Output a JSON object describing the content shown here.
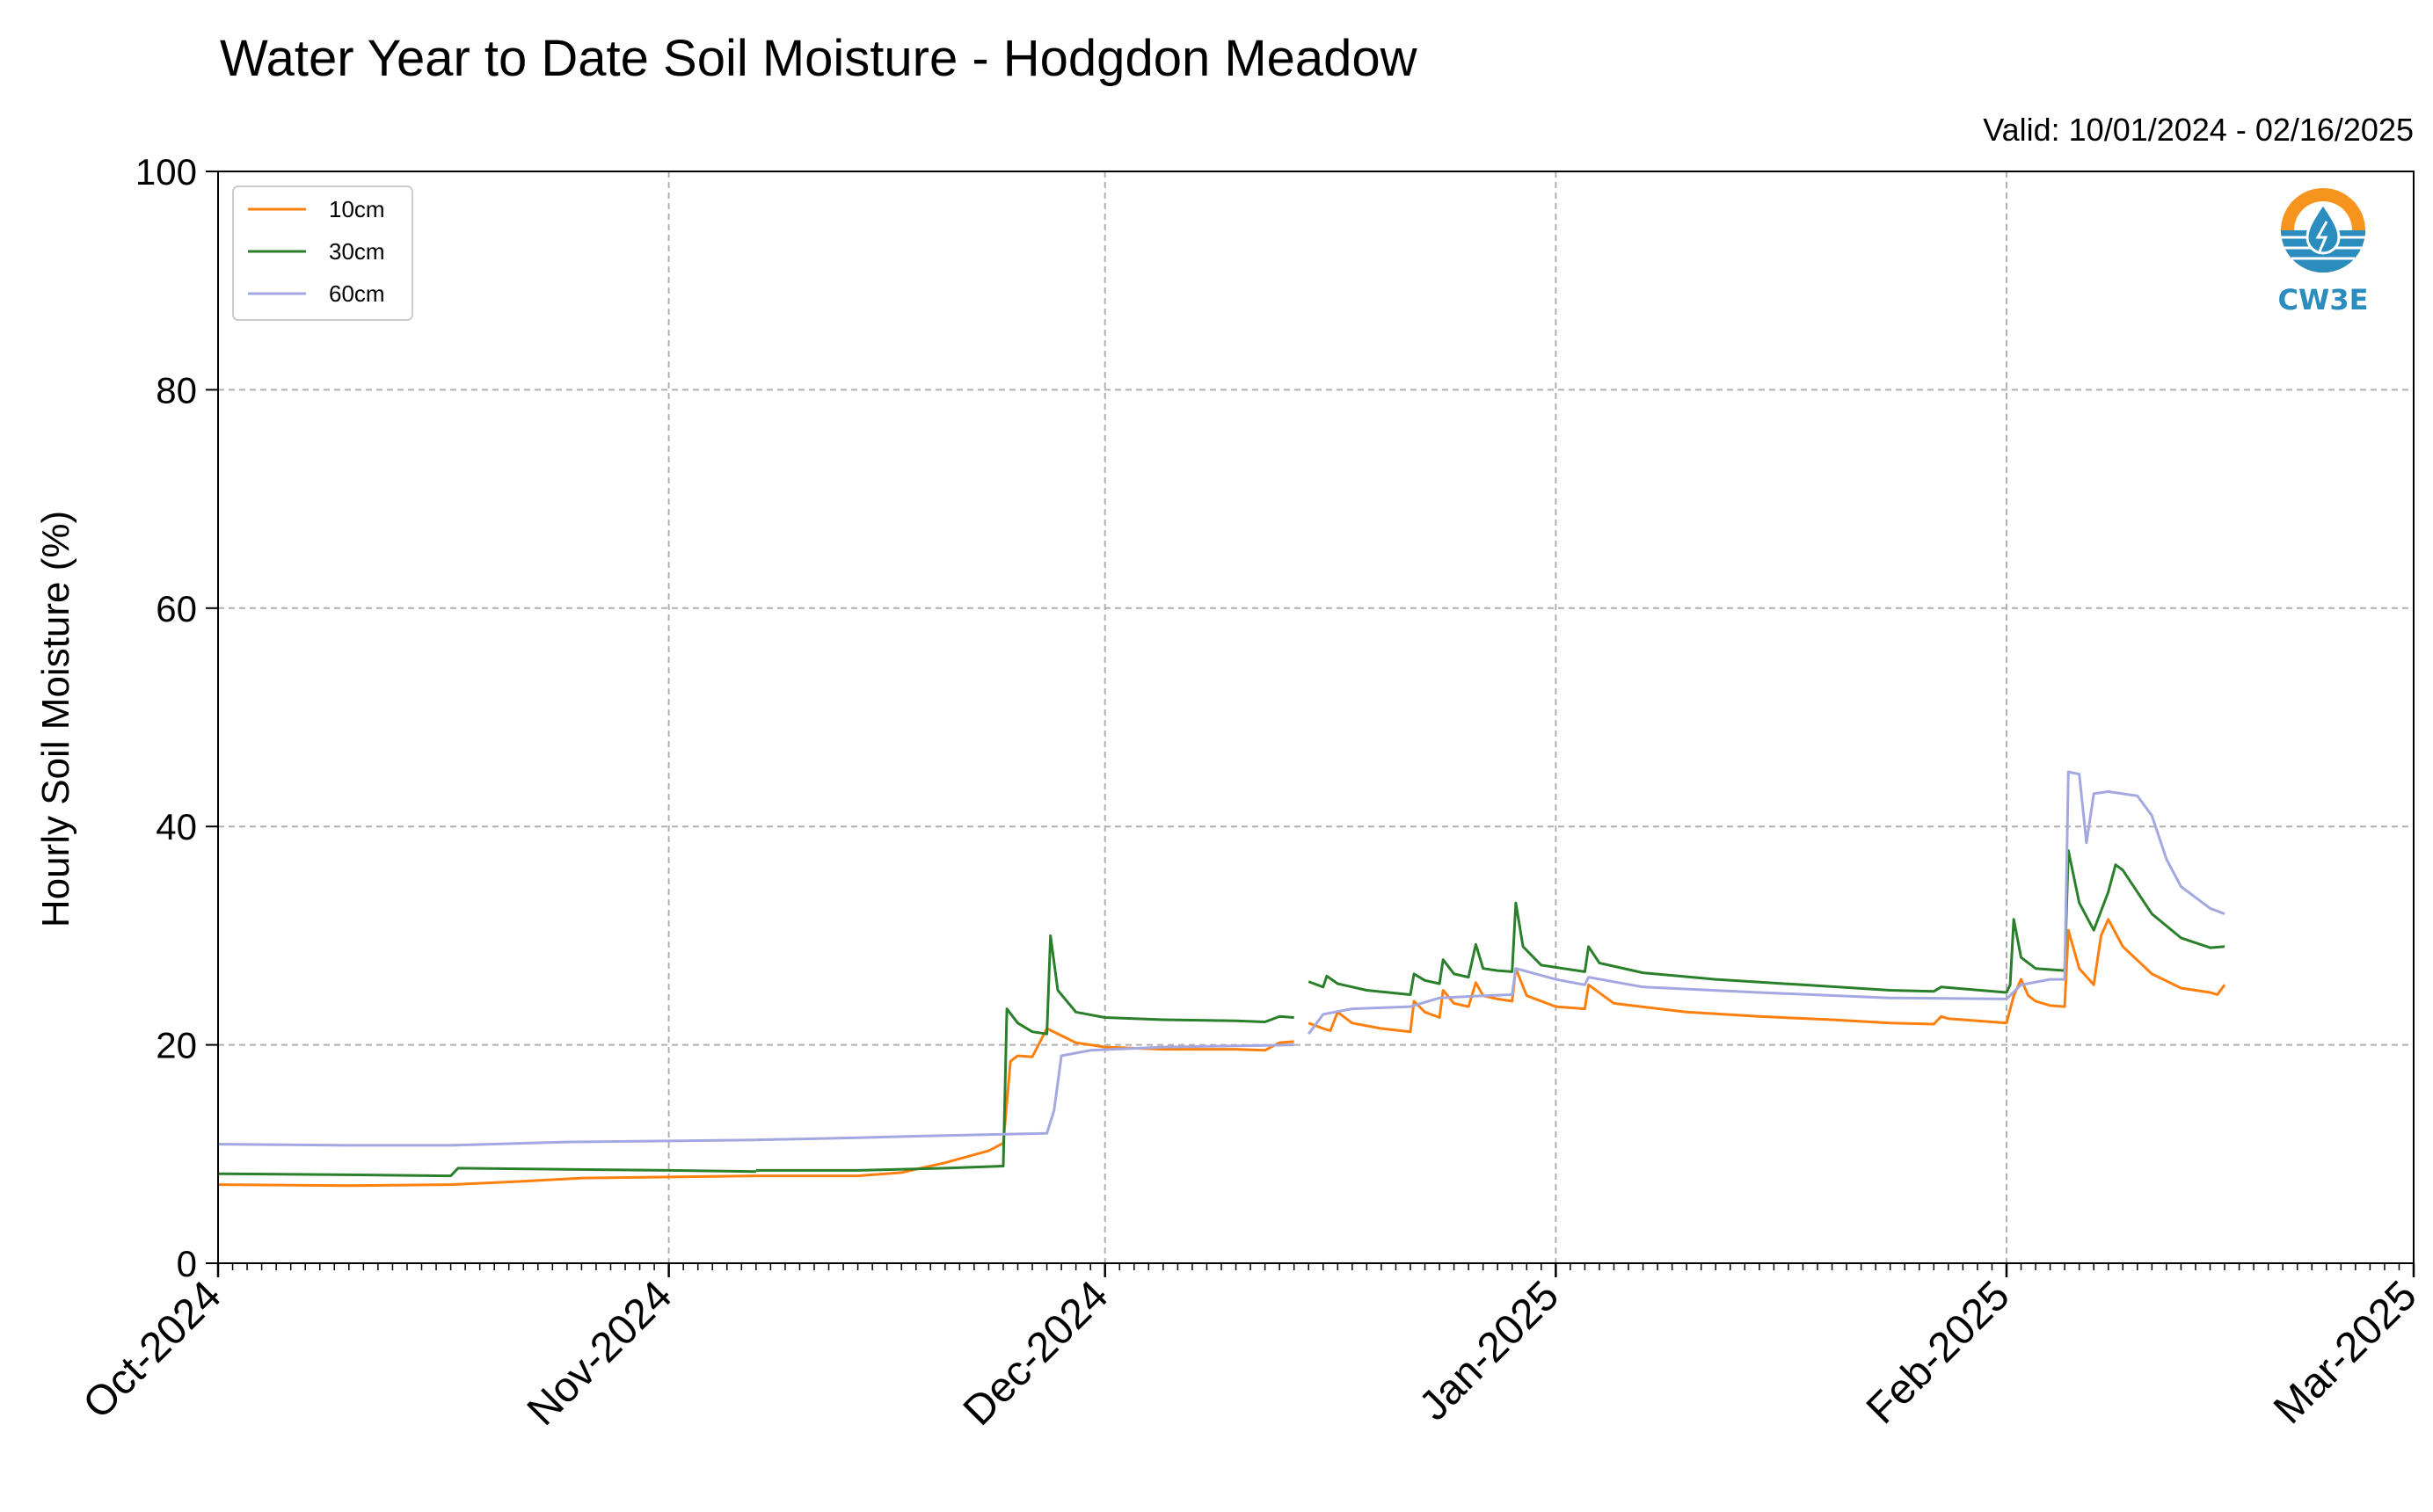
{
  "chart_data": {
    "type": "line",
    "title": "Water Year to Date Soil Moisture - Hodgdon Meadow",
    "subtitle": "Valid: 10/01/2024 - 02/16/2025",
    "ylabel": "Hourly Soil Moisture (%)",
    "xlabel": "",
    "ylim": [
      0,
      100
    ],
    "yticks": [
      0,
      20,
      40,
      60,
      80,
      100
    ],
    "xlim": [
      "2024-10-01",
      "2025-03-01"
    ],
    "xticks": [
      {
        "date": "2024-10-01",
        "label": "Oct-2024"
      },
      {
        "date": "2024-11-01",
        "label": "Nov-2024"
      },
      {
        "date": "2024-12-01",
        "label": "Dec-2024"
      },
      {
        "date": "2025-01-01",
        "label": "Jan-2025"
      },
      {
        "date": "2025-02-01",
        "label": "Feb-2025"
      },
      {
        "date": "2025-03-01",
        "label": "Mar-2025"
      }
    ],
    "grid": true,
    "legend_position": "top-left",
    "series": [
      {
        "name": "10cm",
        "color": "#ff7f0e",
        "segments": [
          [
            [
              "2024-10-01",
              7.2
            ],
            [
              "2024-10-10",
              7.1
            ],
            [
              "2024-10-17",
              7.2
            ],
            [
              "2024-10-22",
              7.5
            ],
            [
              "2024-10-26",
              7.8
            ],
            [
              "2024-11-01",
              7.9
            ],
            [
              "2024-11-07",
              8.0
            ]
          ],
          [
            [
              "2024-11-07",
              8.0
            ],
            [
              "2024-11-14",
              8.0
            ],
            [
              "2024-11-17",
              8.3
            ],
            [
              "2024-11-20",
              9.2
            ],
            [
              "2024-11-23",
              10.3
            ],
            [
              "2024-11-24",
              11.0
            ],
            [
              "2024-11-24 12:00",
              18.5
            ],
            [
              "2024-11-25",
              19.0
            ],
            [
              "2024-11-26",
              18.9
            ],
            [
              "2024-11-27",
              21.5
            ],
            [
              "2024-11-29",
              20.2
            ],
            [
              "2024-12-01",
              19.8
            ],
            [
              "2024-12-05",
              19.6
            ],
            [
              "2024-12-10",
              19.6
            ],
            [
              "2024-12-12",
              19.5
            ],
            [
              "2024-12-13",
              20.2
            ],
            [
              "2024-12-14",
              20.3
            ]
          ],
          [
            [
              "2024-12-15",
              22.0
            ],
            [
              "2024-12-16",
              21.5
            ],
            [
              "2024-12-16 12:00",
              21.3
            ],
            [
              "2024-12-17",
              23.0
            ],
            [
              "2024-12-18",
              22.0
            ],
            [
              "2024-12-20",
              21.5
            ],
            [
              "2024-12-22",
              21.2
            ],
            [
              "2024-12-22 06:00",
              24.0
            ],
            [
              "2024-12-23",
              23.0
            ],
            [
              "2024-12-24",
              22.5
            ],
            [
              "2024-12-24 06:00",
              25.0
            ],
            [
              "2024-12-25",
              23.8
            ],
            [
              "2024-12-26",
              23.5
            ],
            [
              "2024-12-26 12:00",
              25.7
            ],
            [
              "2024-12-27",
              24.5
            ],
            [
              "2024-12-28",
              24.2
            ],
            [
              "2024-12-29",
              24.0
            ],
            [
              "2024-12-29 06:00",
              27.0
            ],
            [
              "2024-12-30",
              24.5
            ],
            [
              "2025-01-01",
              23.5
            ],
            [
              "2025-01-03",
              23.3
            ],
            [
              "2025-01-03 06:00",
              25.5
            ],
            [
              "2025-01-05",
              23.8
            ],
            [
              "2025-01-10",
              23.0
            ],
            [
              "2025-01-15",
              22.6
            ],
            [
              "2025-01-20",
              22.3
            ],
            [
              "2025-01-24",
              22.0
            ],
            [
              "2025-01-27",
              21.9
            ],
            [
              "2025-01-27 12:00",
              22.6
            ],
            [
              "2025-01-28",
              22.4
            ],
            [
              "2025-02-01",
              22.0
            ],
            [
              "2025-02-01 12:00",
              24.5
            ],
            [
              "2025-02-02",
              26.0
            ],
            [
              "2025-02-02 12:00",
              24.5
            ],
            [
              "2025-02-03",
              24.0
            ],
            [
              "2025-02-04",
              23.6
            ],
            [
              "2025-02-05",
              23.5
            ],
            [
              "2025-02-05 06:00",
              30.5
            ],
            [
              "2025-02-06",
              27.0
            ],
            [
              "2025-02-07",
              25.5
            ],
            [
              "2025-02-07 12:00",
              30.0
            ],
            [
              "2025-02-08",
              31.5
            ],
            [
              "2025-02-09",
              29.0
            ],
            [
              "2025-02-11",
              26.5
            ],
            [
              "2025-02-13",
              25.2
            ],
            [
              "2025-02-15",
              24.8
            ],
            [
              "2025-02-15 12:00",
              24.6
            ],
            [
              "2025-02-16",
              25.5
            ]
          ]
        ]
      },
      {
        "name": "30cm",
        "color": "#2a7f2a",
        "segments": [
          [
            [
              "2024-10-01",
              8.2
            ],
            [
              "2024-10-10",
              8.1
            ],
            [
              "2024-10-17",
              8.0
            ],
            [
              "2024-10-17 12:00",
              8.7
            ],
            [
              "2024-10-25",
              8.6
            ],
            [
              "2024-11-01",
              8.5
            ],
            [
              "2024-11-07",
              8.4
            ]
          ],
          [
            [
              "2024-11-07",
              8.5
            ],
            [
              "2024-11-14",
              8.5
            ],
            [
              "2024-11-20",
              8.7
            ],
            [
              "2024-11-24",
              8.9
            ],
            [
              "2024-11-24 06:00",
              23.3
            ],
            [
              "2024-11-25",
              22.0
            ],
            [
              "2024-11-26",
              21.2
            ],
            [
              "2024-11-27",
              21.0
            ],
            [
              "2024-11-27 06:00",
              30.0
            ],
            [
              "2024-11-27 18:00",
              25.0
            ],
            [
              "2024-11-29",
              23.0
            ],
            [
              "2024-12-01",
              22.5
            ],
            [
              "2024-12-05",
              22.3
            ],
            [
              "2024-12-10",
              22.2
            ],
            [
              "2024-12-12",
              22.1
            ],
            [
              "2024-12-13",
              22.6
            ],
            [
              "2024-12-14",
              22.5
            ]
          ],
          [
            [
              "2024-12-15",
              25.8
            ],
            [
              "2024-12-16",
              25.3
            ],
            [
              "2024-12-16 06:00",
              26.3
            ],
            [
              "2024-12-17",
              25.6
            ],
            [
              "2024-12-19",
              25.0
            ],
            [
              "2024-12-22",
              24.6
            ],
            [
              "2024-12-22 06:00",
              26.5
            ],
            [
              "2024-12-23",
              25.9
            ],
            [
              "2024-12-24",
              25.6
            ],
            [
              "2024-12-24 06:00",
              27.8
            ],
            [
              "2024-12-25",
              26.5
            ],
            [
              "2024-12-26",
              26.2
            ],
            [
              "2024-12-26 12:00",
              29.2
            ],
            [
              "2024-12-27",
              27.0
            ],
            [
              "2024-12-28",
              26.8
            ],
            [
              "2024-12-29",
              26.7
            ],
            [
              "2024-12-29 06:00",
              33.0
            ],
            [
              "2024-12-29 18:00",
              29.0
            ],
            [
              "2024-12-31",
              27.3
            ],
            [
              "2025-01-03",
              26.7
            ],
            [
              "2025-01-03 06:00",
              29.0
            ],
            [
              "2025-01-04",
              27.5
            ],
            [
              "2025-01-07",
              26.6
            ],
            [
              "2025-01-12",
              26.0
            ],
            [
              "2025-01-18",
              25.5
            ],
            [
              "2025-01-24",
              25.0
            ],
            [
              "2025-01-27",
              24.9
            ],
            [
              "2025-01-27 12:00",
              25.3
            ],
            [
              "2025-02-01",
              24.8
            ],
            [
              "2025-02-01 06:00",
              25.5
            ],
            [
              "2025-02-01 12:00",
              31.5
            ],
            [
              "2025-02-02",
              28.0
            ],
            [
              "2025-02-03",
              27.0
            ],
            [
              "2025-02-05",
              26.8
            ],
            [
              "2025-02-05 06:00",
              37.8
            ],
            [
              "2025-02-06",
              33.0
            ],
            [
              "2025-02-07",
              30.5
            ],
            [
              "2025-02-08",
              34.0
            ],
            [
              "2025-02-08 12:00",
              36.5
            ],
            [
              "2025-02-09",
              36.0
            ],
            [
              "2025-02-11",
              32.0
            ],
            [
              "2025-02-13",
              29.8
            ],
            [
              "2025-02-15",
              28.9
            ],
            [
              "2025-02-16",
              29.0
            ]
          ]
        ]
      },
      {
        "name": "60cm",
        "color": "#a3a8e0",
        "segments": [
          [
            [
              "2024-10-01",
              10.9
            ],
            [
              "2024-10-10",
              10.8
            ],
            [
              "2024-10-17",
              10.8
            ],
            [
              "2024-10-25",
              11.1
            ],
            [
              "2024-11-01",
              11.2
            ],
            [
              "2024-11-07",
              11.3
            ]
          ],
          [
            [
              "2024-11-07",
              11.3
            ],
            [
              "2024-11-14",
              11.5
            ],
            [
              "2024-11-20",
              11.7
            ],
            [
              "2024-11-27",
              11.9
            ],
            [
              "2024-11-27 12:00",
              14.0
            ],
            [
              "2024-11-28",
              19.0
            ],
            [
              "2024-11-30",
              19.5
            ],
            [
              "2024-12-05",
              19.8
            ],
            [
              "2024-12-10",
              19.9
            ],
            [
              "2024-12-14",
              20.0
            ]
          ],
          [
            [
              "2024-12-15",
              21.0
            ],
            [
              "2024-12-16",
              22.8
            ],
            [
              "2024-12-18",
              23.3
            ],
            [
              "2024-12-22",
              23.5
            ],
            [
              "2024-12-24",
              24.3
            ],
            [
              "2024-12-27",
              24.5
            ],
            [
              "2024-12-29",
              24.6
            ],
            [
              "2024-12-29 06:00",
              27.0
            ],
            [
              "2025-01-01",
              26.0
            ],
            [
              "2025-01-03",
              25.5
            ],
            [
              "2025-01-03 06:00",
              26.2
            ],
            [
              "2025-01-07",
              25.3
            ],
            [
              "2025-01-15",
              24.8
            ],
            [
              "2025-01-24",
              24.3
            ],
            [
              "2025-02-01",
              24.2
            ],
            [
              "2025-02-02",
              25.5
            ],
            [
              "2025-02-04",
              26.0
            ],
            [
              "2025-02-05",
              26.0
            ],
            [
              "2025-02-05 06:00",
              45.0
            ],
            [
              "2025-02-06",
              44.8
            ],
            [
              "2025-02-06 12:00",
              38.5
            ],
            [
              "2025-02-07",
              43.0
            ],
            [
              "2025-02-08",
              43.2
            ],
            [
              "2025-02-10",
              42.8
            ],
            [
              "2025-02-11",
              41.0
            ],
            [
              "2025-02-12",
              37.0
            ],
            [
              "2025-02-13",
              34.5
            ],
            [
              "2025-02-15",
              32.5
            ],
            [
              "2025-02-16",
              32.0
            ]
          ]
        ]
      }
    ]
  },
  "logo": {
    "text": "CW3E",
    "ring_color": "#f7941d",
    "water_color": "#2b8cbe",
    "text_color": "#2b8cbe",
    "icon": "water-drop-icon"
  }
}
